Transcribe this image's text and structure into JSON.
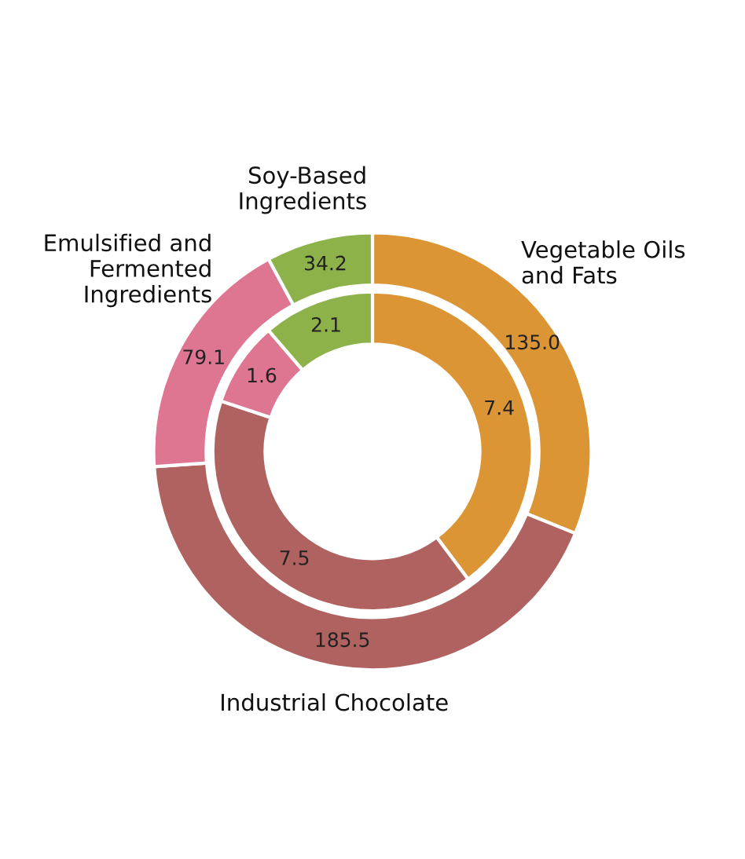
{
  "chart_data": {
    "type": "donut",
    "categories": [
      "Vegetable Oils\nand Fats",
      "Industrial Chocolate",
      "Emulsified and\nFermented\nIngredients",
      "Soy-Based\nIngredients"
    ],
    "colors": [
      "#dc9535",
      "#b06260",
      "#de7591",
      "#8db24a"
    ],
    "series": [
      {
        "values": [
          135.0,
          185.5,
          79.1,
          34.2
        ],
        "value_labels": [
          "135.0",
          "185.5",
          "79.1",
          "34.2"
        ]
      },
      {
        "values": [
          7.4,
          7.5,
          1.6,
          2.1
        ],
        "value_labels": [
          "7.4",
          "7.5",
          "1.6",
          "2.1"
        ]
      }
    ]
  }
}
